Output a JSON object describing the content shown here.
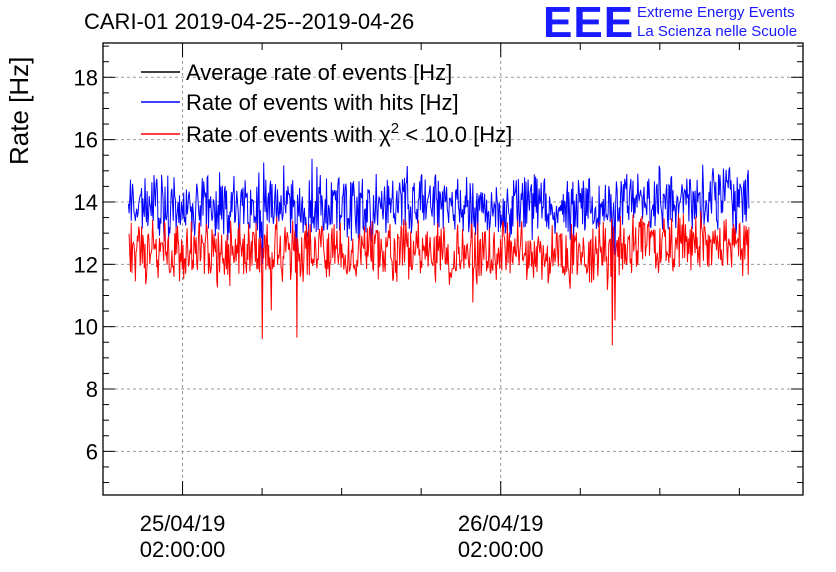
{
  "header": {
    "title": "CARI-01 2019-04-25--2019-04-26",
    "logo_text": "EEE",
    "logo_line1": "Extreme Energy Events",
    "logo_line2": "La Scienza nelle Scuole"
  },
  "chart_data": {
    "type": "line",
    "title": "CARI-01 2019-04-25--2019-04-26",
    "xlabel": "",
    "ylabel": "Rate [Hz]",
    "ylim": [
      4.6,
      19.1
    ],
    "xlim": [
      -0.25,
      1.95
    ],
    "x_unit": "days since 25/04/19 02:00:00",
    "yticks": [
      6,
      8,
      10,
      12,
      14,
      16,
      18
    ],
    "ytick_labels": [
      "6",
      "8",
      "10",
      "12",
      "14",
      "16",
      "18"
    ],
    "xticks": [
      {
        "x": 0,
        "label1": "25/04/19",
        "label2": "02:00:00"
      },
      {
        "x": 1,
        "label1": "26/04/19",
        "label2": "02:00:00"
      }
    ],
    "grid": true,
    "legend_position": "top-left",
    "data_range": [
      -0.17,
      1.78
    ],
    "series": [
      {
        "name": "Average rate of events [Hz]",
        "color": "#000000",
        "legend_label": "Average rate of events [Hz]",
        "mean": 13.8
      },
      {
        "name": "Rate of events with hits [Hz]",
        "color": "#0000ff",
        "legend_label": "Rate of events with hits [Hz]",
        "mean": 13.85,
        "min": 12.0,
        "max": 15.4
      },
      {
        "name": "Rate of events with chi2 < 10.0 [Hz]",
        "color": "#ff0000",
        "legend_prefix": "Rate of events with ",
        "legend_symbol": "χ",
        "legend_sup": "2",
        "legend_suffix": " < 10.0 [Hz]",
        "mean": 12.4,
        "min": 9.3,
        "max": 13.9
      }
    ],
    "dips": [
      {
        "x": 0.25,
        "hits": 12.0,
        "chi2": 9.6
      },
      {
        "x": 0.36,
        "hits": 12.4,
        "chi2": 9.65
      },
      {
        "x": 0.34,
        "hits": 13.0,
        "chi2": 11.5
      },
      {
        "x": 1.35,
        "hits": 12.0,
        "chi2": 9.4
      },
      {
        "x": 1.36,
        "hits": 12.3,
        "chi2": 10.2
      }
    ]
  }
}
